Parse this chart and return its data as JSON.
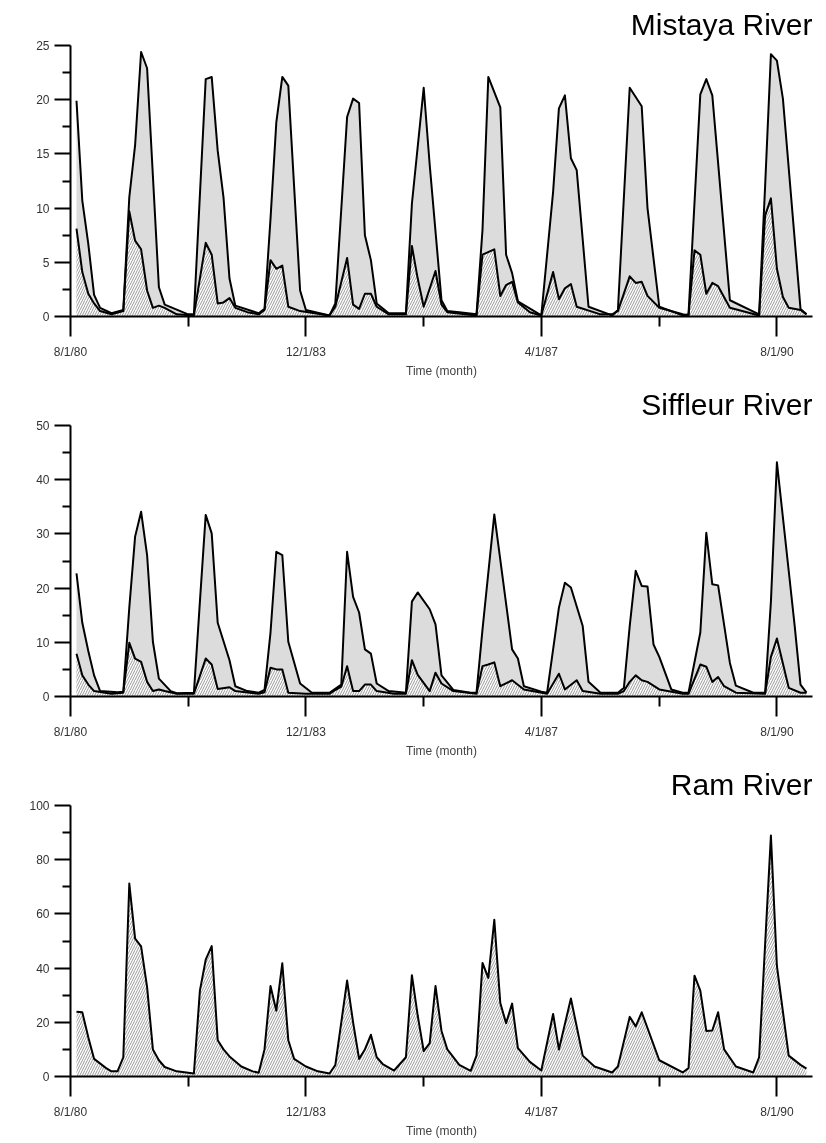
{
  "chart_data": [
    {
      "type": "area",
      "title": "Mistaya River",
      "xlabel": "Time (month)",
      "xlim": [
        "1980-08-01",
        "1991-02-01"
      ],
      "xticks": [
        {
          "value": "1980-08-01",
          "label": "8/1/80"
        },
        {
          "value": "1982-04-01",
          "label": null
        },
        {
          "value": "1983-12-01",
          "label": "12/1/83"
        },
        {
          "value": "1985-08-01",
          "label": null
        },
        {
          "value": "1987-04-01",
          "label": "4/1/87"
        },
        {
          "value": "1988-12-01",
          "label": null
        },
        {
          "value": "1990-08-01",
          "label": "8/1/90"
        }
      ],
      "ylim": [
        0,
        25
      ],
      "yticks": [
        0,
        {
          "value": 2.5,
          "label": null
        },
        5,
        {
          "value": 7.5,
          "label": null
        },
        10,
        {
          "value": 12.5,
          "label": null
        },
        15,
        {
          "value": 17.5,
          "label": null
        },
        20,
        {
          "value": 22.5,
          "label": null
        },
        25
      ],
      "series": [
        {
          "color": "#dcdcdc",
          "x": [
            "1980-09",
            "1980-10",
            "1980-11",
            "1980-12",
            "1981-01",
            "1981-03",
            "1981-05",
            "1981-06",
            "1981-07",
            "1981-08",
            "1981-09",
            "1981-11",
            "1981-12",
            "1982-04",
            "1982-05",
            "1982-07",
            "1982-08",
            "1982-09",
            "1982-10",
            "1982-11",
            "1982-12",
            "1983-04",
            "1983-05",
            "1983-06",
            "1983-07",
            "1983-08",
            "1983-09",
            "1983-11",
            "1983-12",
            "1984-04",
            "1984-05",
            "1984-07",
            "1984-08",
            "1984-09",
            "1984-10",
            "1984-11",
            "1984-12",
            "1985-02",
            "1985-05",
            "1985-06",
            "1985-08",
            "1985-09",
            "1985-11",
            "1985-12",
            "1986-02",
            "1986-05",
            "1986-06",
            "1986-07",
            "1986-09",
            "1986-10",
            "1986-11",
            "1986-12",
            "1987-04",
            "1987-06",
            "1987-07",
            "1987-08",
            "1987-09",
            "1987-10",
            "1987-12",
            "1988-04",
            "1988-05",
            "1988-07",
            "1988-09",
            "1988-10",
            "1988-12",
            "1989-04",
            "1989-05",
            "1989-07",
            "1989-08",
            "1989-09",
            "1989-12",
            "1990-05",
            "1990-06",
            "1990-07",
            "1990-08",
            "1990-09",
            "1990-12",
            "1991-01"
          ],
          "values": [
            19.9,
            10.7,
            6.7,
            2.0,
            0.8,
            0.3,
            0.6,
            11.0,
            15.8,
            24.4,
            22.9,
            2.7,
            1.1,
            0.2,
            0.2,
            21.9,
            22.1,
            15.3,
            11.0,
            3.5,
            1.0,
            0.3,
            0.7,
            9.0,
            17.9,
            22.1,
            21.3,
            2.4,
            0.6,
            0.1,
            1.2,
            18.4,
            20.1,
            19.7,
            7.5,
            5.2,
            1.2,
            0.3,
            0.3,
            10.4,
            21.1,
            14.0,
            1.5,
            0.5,
            0.4,
            0.2,
            8.0,
            22.1,
            19.3,
            5.7,
            4.0,
            1.4,
            0.1,
            11.5,
            19.2,
            20.4,
            14.6,
            13.5,
            0.9,
            0.1,
            0.6,
            21.1,
            19.4,
            10.0,
            0.9,
            0.1,
            0.2,
            20.5,
            21.9,
            20.4,
            1.5,
            0.2,
            12.0,
            24.2,
            23.6,
            20.1,
            0.7,
            0.2
          ]
        },
        {
          "color": "#9a9a9a",
          "x": [
            "1980-09",
            "1980-10",
            "1980-11",
            "1980-12",
            "1981-01",
            "1981-03",
            "1981-05",
            "1981-06",
            "1981-07",
            "1981-08",
            "1981-09",
            "1981-10",
            "1981-11",
            "1981-12",
            "1982-02",
            "1982-05",
            "1982-07",
            "1982-08",
            "1982-09",
            "1982-10",
            "1982-11",
            "1982-12",
            "1983-02",
            "1983-04",
            "1983-05",
            "1983-06",
            "1983-07",
            "1983-08",
            "1983-09",
            "1983-11",
            "1984-04",
            "1984-05",
            "1984-07",
            "1984-08",
            "1984-09",
            "1984-10",
            "1984-11",
            "1984-12",
            "1985-02",
            "1985-05",
            "1985-06",
            "1985-07",
            "1985-08",
            "1985-10",
            "1985-11",
            "1985-12",
            "1986-05",
            "1986-06",
            "1986-08",
            "1986-09",
            "1986-10",
            "1986-11",
            "1986-12",
            "1987-02",
            "1987-04",
            "1987-06",
            "1987-07",
            "1987-08",
            "1987-09",
            "1987-10",
            "1988-02",
            "1988-04",
            "1988-05",
            "1988-07",
            "1988-08",
            "1988-09",
            "1988-10",
            "1988-12",
            "1989-04",
            "1989-05",
            "1989-06",
            "1989-07",
            "1989-08",
            "1989-09",
            "1989-10",
            "1989-12",
            "1990-05",
            "1990-06",
            "1990-07",
            "1990-08",
            "1990-09",
            "1990-10",
            "1990-12",
            "1991-01"
          ],
          "values": [
            8.1,
            4.1,
            2.1,
            1.2,
            0.5,
            0.2,
            0.5,
            9.7,
            7.0,
            6.2,
            2.4,
            0.8,
            1.0,
            0.8,
            0.2,
            0.1,
            6.8,
            5.7,
            1.2,
            1.3,
            1.7,
            0.8,
            0.4,
            0.2,
            0.6,
            5.2,
            4.4,
            4.7,
            0.9,
            0.5,
            0.1,
            0.9,
            5.4,
            1.1,
            0.7,
            2.1,
            2.1,
            0.9,
            0.2,
            0.2,
            6.5,
            3.5,
            0.9,
            4.2,
            1.1,
            0.4,
            0.1,
            5.7,
            6.2,
            1.9,
            2.9,
            3.2,
            1.3,
            0.4,
            0.1,
            4.1,
            1.6,
            2.6,
            3.0,
            0.9,
            0.2,
            0.2,
            0.5,
            3.7,
            3.1,
            3.2,
            1.9,
            0.8,
            0.2,
            0.1,
            6.1,
            5.7,
            2.1,
            3.1,
            2.8,
            0.8,
            0.1,
            9.3,
            10.9,
            4.4,
            1.8,
            0.8,
            0.6,
            0.2
          ]
        }
      ]
    },
    {
      "type": "area",
      "title": "Siffleur River",
      "xlabel": "Time (month)",
      "xlim": [
        "1980-08-01",
        "1991-02-01"
      ],
      "xticks": [
        {
          "value": "1980-08-01",
          "label": "8/1/80"
        },
        {
          "value": "1982-04-01",
          "label": null
        },
        {
          "value": "1983-12-01",
          "label": "12/1/83"
        },
        {
          "value": "1985-08-01",
          "label": null
        },
        {
          "value": "1987-04-01",
          "label": "4/1/87"
        },
        {
          "value": "1988-12-01",
          "label": null
        },
        {
          "value": "1990-08-01",
          "label": "8/1/90"
        }
      ],
      "ylim": [
        0,
        50
      ],
      "yticks": [
        0,
        {
          "value": 5,
          "label": null
        },
        10,
        {
          "value": 15,
          "label": null
        },
        20,
        {
          "value": 25,
          "label": null
        },
        30,
        {
          "value": 35,
          "label": null
        },
        40,
        {
          "value": 45,
          "label": null
        },
        50
      ],
      "series": [
        {
          "color": "#dcdcdc",
          "x": [
            "1980-09",
            "1980-10",
            "1980-11",
            "1980-12",
            "1981-01",
            "1981-04",
            "1981-05",
            "1981-06",
            "1981-07",
            "1981-08",
            "1981-09",
            "1981-10",
            "1981-11",
            "1982-01",
            "1982-02",
            "1982-05",
            "1982-06",
            "1982-07",
            "1982-08",
            "1982-09",
            "1982-11",
            "1982-12",
            "1983-02",
            "1983-04",
            "1983-05",
            "1983-06",
            "1983-07",
            "1983-08",
            "1983-09",
            "1983-11",
            "1984-01",
            "1984-04",
            "1984-06",
            "1984-07",
            "1984-08",
            "1984-09",
            "1984-10",
            "1984-11",
            "1984-12",
            "1985-02",
            "1985-05",
            "1985-06",
            "1985-07",
            "1985-09",
            "1985-10",
            "1985-11",
            "1986-01",
            "1986-04",
            "1986-05",
            "1986-06",
            "1986-08",
            "1986-11",
            "1986-12",
            "1987-01",
            "1987-04",
            "1987-05",
            "1987-07",
            "1987-08",
            "1987-09",
            "1987-11",
            "1987-12",
            "1988-02",
            "1988-05",
            "1988-06",
            "1988-07",
            "1988-08",
            "1988-09",
            "1988-10",
            "1988-11",
            "1988-12",
            "1989-02",
            "1989-04",
            "1989-05",
            "1989-07",
            "1989-08",
            "1989-09",
            "1989-10",
            "1989-12",
            "1990-01",
            "1990-04",
            "1990-06",
            "1990-07",
            "1990-08",
            "1990-10",
            "1990-11",
            "1990-12",
            "1991-01"
          ],
          "values": [
            22.7,
            13.6,
            8.4,
            3.9,
            1.0,
            0.8,
            0.9,
            16.4,
            29.5,
            34.1,
            26.1,
            10.1,
            3.3,
            1.0,
            0.6,
            0.7,
            17.5,
            33.5,
            30.1,
            13.6,
            6.7,
            1.9,
            1.0,
            0.7,
            1.2,
            11.8,
            26.7,
            26.1,
            10.1,
            2.4,
            0.7,
            0.7,
            2.2,
            26.7,
            18.4,
            15.5,
            8.7,
            7.9,
            2.4,
            1.0,
            0.7,
            17.5,
            19.2,
            16.1,
            13.3,
            3.9,
            1.2,
            0.7,
            0.7,
            12.4,
            33.6,
            8.7,
            7.0,
            1.9,
            0.9,
            0.7,
            16.4,
            21.0,
            20.1,
            13.0,
            2.7,
            0.7,
            0.7,
            1.6,
            13.0,
            23.2,
            20.4,
            20.3,
            9.6,
            7.3,
            1.3,
            0.7,
            0.7,
            11.8,
            30.2,
            20.7,
            20.5,
            6.2,
            2.0,
            0.7,
            0.7,
            17.5,
            43.2,
            23.2,
            13.0,
            2.2,
            0.7
          ]
        },
        {
          "color": "#9a9a9a",
          "x": [
            "1980-09",
            "1980-10",
            "1980-11",
            "1980-12",
            "1981-03",
            "1981-05",
            "1981-06",
            "1981-07",
            "1981-08",
            "1981-09",
            "1981-10",
            "1981-11",
            "1981-12",
            "1982-02",
            "1982-05",
            "1982-07",
            "1982-08",
            "1982-09",
            "1982-11",
            "1982-12",
            "1983-04",
            "1983-05",
            "1983-06",
            "1983-07",
            "1983-08",
            "1983-09",
            "1983-12",
            "1984-04",
            "1984-05",
            "1984-06",
            "1984-07",
            "1984-08",
            "1984-09",
            "1984-10",
            "1984-11",
            "1984-12",
            "1985-03",
            "1985-05",
            "1985-06",
            "1985-07",
            "1985-09",
            "1985-10",
            "1985-11",
            "1986-01",
            "1986-05",
            "1986-06",
            "1986-07",
            "1986-08",
            "1986-09",
            "1986-11",
            "1987-01",
            "1987-05",
            "1987-07",
            "1987-08",
            "1987-10",
            "1987-11",
            "1988-02",
            "1988-05",
            "1988-06",
            "1988-07",
            "1988-08",
            "1988-09",
            "1988-10",
            "1988-12",
            "1989-04",
            "1989-05",
            "1989-07",
            "1989-08",
            "1989-09",
            "1989-10",
            "1989-11",
            "1990-01",
            "1990-06",
            "1990-07",
            "1990-08",
            "1990-10",
            "1990-12",
            "1991-01"
          ],
          "values": [
            7.9,
            3.9,
            2.2,
            1.0,
            0.5,
            0.7,
            9.9,
            7.0,
            6.4,
            2.7,
            1.0,
            1.3,
            1.0,
            0.5,
            0.5,
            7.0,
            5.9,
            1.4,
            1.7,
            1.0,
            0.5,
            0.8,
            5.3,
            5.0,
            5.0,
            0.7,
            0.5,
            0.5,
            1.2,
            1.8,
            5.6,
            1.0,
            1.0,
            2.2,
            2.2,
            1.0,
            0.5,
            0.5,
            6.7,
            4.0,
            1.0,
            4.4,
            2.4,
            1.0,
            0.5,
            5.6,
            5.9,
            6.3,
            1.9,
            3.0,
            1.3,
            0.5,
            4.2,
            1.3,
            3.0,
            1.0,
            0.5,
            0.5,
            1.0,
            2.7,
            3.9,
            3.0,
            2.7,
            1.3,
            0.5,
            0.5,
            5.9,
            5.5,
            2.7,
            3.6,
            1.9,
            0.7,
            0.5,
            7.3,
            10.7,
            1.6,
            0.7,
            0.7
          ]
        }
      ]
    },
    {
      "type": "area",
      "title": "Ram River",
      "xlabel": "Time (month)",
      "xlim": [
        "1980-08-01",
        "1991-02-01"
      ],
      "xticks": [
        {
          "value": "1980-08-01",
          "label": "8/1/80"
        },
        {
          "value": "1982-04-01",
          "label": null
        },
        {
          "value": "1983-12-01",
          "label": "12/1/83"
        },
        {
          "value": "1985-08-01",
          "label": null
        },
        {
          "value": "1987-04-01",
          "label": "4/1/87"
        },
        {
          "value": "1988-12-01",
          "label": null
        },
        {
          "value": "1990-08-01",
          "label": "8/1/90"
        }
      ],
      "ylim": [
        0,
        100
      ],
      "yticks": [
        0,
        {
          "value": 10,
          "label": null
        },
        20,
        {
          "value": 30,
          "label": null
        },
        40,
        {
          "value": 50,
          "label": null
        },
        60,
        {
          "value": 70,
          "label": null
        },
        80,
        {
          "value": 90,
          "label": null
        },
        100
      ],
      "series": [
        {
          "color": "#9a9a9a",
          "x": [
            "1980-09",
            "1980-10",
            "1980-11",
            "1980-12",
            "1981-02",
            "1981-03",
            "1981-04",
            "1981-05",
            "1981-06",
            "1981-07",
            "1981-08",
            "1981-09",
            "1981-10",
            "1981-11",
            "1981-12",
            "1982-02",
            "1982-05",
            "1982-06",
            "1982-07",
            "1982-08",
            "1982-09",
            "1982-10",
            "1982-11",
            "1983-01",
            "1983-03",
            "1983-04",
            "1983-05",
            "1983-06",
            "1983-07",
            "1983-08",
            "1983-09",
            "1983-10",
            "1983-12",
            "1984-02",
            "1984-04",
            "1984-05",
            "1984-07",
            "1984-08",
            "1984-09",
            "1984-10",
            "1984-11",
            "1984-12",
            "1985-01",
            "1985-03",
            "1985-05",
            "1985-06",
            "1985-07",
            "1985-08",
            "1985-09",
            "1985-10",
            "1985-11",
            "1985-12",
            "1986-02",
            "1986-04",
            "1986-05",
            "1986-06",
            "1986-07",
            "1986-08",
            "1986-09",
            "1986-10",
            "1986-11",
            "1986-12",
            "1987-02",
            "1987-04",
            "1987-06",
            "1987-07",
            "1987-09",
            "1987-11",
            "1988-01",
            "1988-04",
            "1988-05",
            "1988-07",
            "1988-08",
            "1988-09",
            "1988-12",
            "1989-04",
            "1989-05",
            "1989-06",
            "1989-07",
            "1989-08",
            "1989-09",
            "1989-10",
            "1989-11",
            "1990-01",
            "1990-04",
            "1990-05",
            "1990-07",
            "1990-08",
            "1990-10",
            "1990-12",
            "1991-01"
          ],
          "values": [
            23.9,
            23.7,
            14.5,
            6.5,
            3.1,
            1.9,
            1.9,
            7.1,
            71.2,
            50.9,
            48.0,
            33.0,
            10.0,
            6.0,
            3.5,
            1.9,
            1.1,
            31.7,
            43.1,
            48.1,
            13.4,
            10.0,
            7.4,
            3.7,
            1.9,
            1.4,
            10.0,
            33.4,
            24.3,
            41.8,
            13.4,
            6.5,
            3.7,
            1.9,
            1.1,
            4.2,
            35.4,
            20.0,
            6.5,
            10.0,
            15.4,
            7.1,
            4.6,
            2.2,
            7.1,
            37.4,
            22.5,
            9.4,
            12.3,
            33.4,
            16.8,
            10.0,
            4.3,
            2.1,
            7.7,
            41.9,
            36.4,
            57.8,
            27.1,
            19.7,
            26.9,
            10.5,
            5.4,
            2.2,
            23.1,
            10.0,
            28.8,
            7.7,
            3.7,
            1.5,
            3.7,
            22.0,
            18.5,
            23.7,
            6.0,
            1.5,
            3.1,
            37.2,
            31.7,
            16.8,
            17.0,
            23.7,
            10.0,
            3.7,
            1.5,
            7.1,
            88.9,
            40.8,
            7.7,
            4.3,
            2.9
          ]
        }
      ]
    }
  ]
}
